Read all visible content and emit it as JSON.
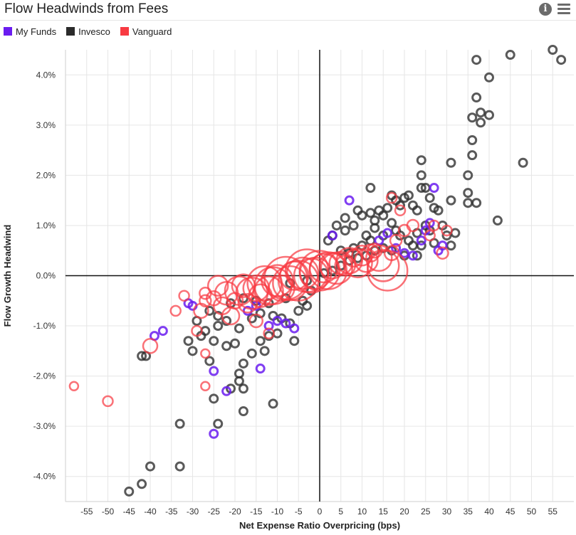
{
  "header": {
    "title": "Flow Headwinds from Fees",
    "info_icon": "info-icon",
    "menu_icon": "hamburger-menu-icon"
  },
  "legend": [
    {
      "label": "My Funds",
      "color": "#6a1cf0"
    },
    {
      "label": "Invesco",
      "color": "#2b2b2b"
    },
    {
      "label": "Vanguard",
      "color": "#f83a42"
    }
  ],
  "chart_data": {
    "type": "scatter",
    "title": "Flow Headwinds from Fees",
    "xlabel": "Net Expense Ratio Overpricing (bps)",
    "ylabel": "Flow Growth Headwind",
    "xlim": [
      -60,
      60
    ],
    "ylim": [
      -4.5,
      4.5
    ],
    "x_ticks": [
      -55,
      -50,
      -45,
      -40,
      -35,
      -30,
      -25,
      -20,
      -15,
      -10,
      -5,
      0,
      5,
      10,
      15,
      20,
      25,
      30,
      35,
      40,
      45,
      50,
      55
    ],
    "x_tick_labels": [
      "-55",
      "-50",
      "-45",
      "-40",
      "-35",
      "-30",
      "-25",
      "-20",
      "-15",
      "-10",
      "-5",
      "0",
      "5",
      "10",
      "15",
      "20",
      "25",
      "30",
      "35",
      "40",
      "45",
      "50",
      "55"
    ],
    "y_ticks": [
      4,
      3,
      2,
      1,
      0,
      -1,
      -2,
      -3,
      -4
    ],
    "y_tick_labels": [
      "4.0%",
      "3.0%",
      "2.0%",
      "1.0%",
      "0.0%",
      "-1.0%",
      "-2.0%",
      "-3.0%",
      "-4.0%"
    ],
    "grid": true,
    "legend_position": "top-left",
    "series": [
      {
        "name": "Invesco",
        "color": "#2b2b2b",
        "points": [
          [
            -45,
            -4.3
          ],
          [
            -42,
            -4.15
          ],
          [
            -40,
            -3.8
          ],
          [
            -33,
            -3.8
          ],
          [
            -33,
            -2.95
          ],
          [
            -24,
            -2.95
          ],
          [
            -18,
            -2.7
          ],
          [
            -11,
            -2.55
          ],
          [
            -21,
            -2.25
          ],
          [
            -18,
            -2.25
          ],
          [
            -19,
            -2.1
          ],
          [
            -25,
            -2.45
          ],
          [
            -19,
            -1.95
          ],
          [
            -18,
            -1.75
          ],
          [
            -26,
            -1.7
          ],
          [
            -42,
            -1.6
          ],
          [
            -41,
            -1.6
          ],
          [
            -30,
            -1.5
          ],
          [
            -25,
            -1.3
          ],
          [
            -22,
            -1.4
          ],
          [
            -20,
            -1.35
          ],
          [
            -16,
            -1.55
          ],
          [
            -13,
            -1.5
          ],
          [
            -14,
            -1.3
          ],
          [
            -12,
            -1.2
          ],
          [
            -10,
            -1.15
          ],
          [
            -6,
            -1.3
          ],
          [
            -31,
            -1.3
          ],
          [
            -28,
            -1.2
          ],
          [
            -29,
            -0.9
          ],
          [
            -27,
            -1.1
          ],
          [
            -24,
            -1.0
          ],
          [
            -22,
            -0.9
          ],
          [
            -19,
            -1.05
          ],
          [
            -16,
            -0.85
          ],
          [
            -14,
            -0.75
          ],
          [
            -11,
            -0.8
          ],
          [
            -9,
            -0.85
          ],
          [
            -7,
            -0.95
          ],
          [
            -5,
            -0.7
          ],
          [
            -3,
            -0.6
          ],
          [
            -26,
            -0.7
          ],
          [
            -24,
            -0.8
          ],
          [
            -21,
            -0.55
          ],
          [
            -18,
            -0.45
          ],
          [
            -15,
            -0.5
          ],
          [
            -12,
            -0.55
          ],
          [
            -8,
            -0.45
          ],
          [
            -4,
            -0.5
          ],
          [
            -2,
            -0.3
          ],
          [
            -7,
            -0.15
          ],
          [
            -3,
            -0.1
          ],
          [
            1,
            0.05
          ],
          [
            3,
            0.1
          ],
          [
            5,
            0.2
          ],
          [
            7,
            0.3
          ],
          [
            9,
            0.35
          ],
          [
            11,
            0.4
          ],
          [
            13,
            0.5
          ],
          [
            15,
            0.55
          ],
          [
            6,
            0.9
          ],
          [
            8,
            1.0
          ],
          [
            9,
            1.3
          ],
          [
            10,
            1.2
          ],
          [
            12,
            1.25
          ],
          [
            13,
            1.1
          ],
          [
            14,
            1.3
          ],
          [
            15,
            1.2
          ],
          [
            16,
            1.35
          ],
          [
            17,
            1.05
          ],
          [
            18,
            1.5
          ],
          [
            19,
            1.4
          ],
          [
            20,
            1.55
          ],
          [
            21,
            1.6
          ],
          [
            22,
            1.4
          ],
          [
            23,
            1.3
          ],
          [
            18,
            0.9
          ],
          [
            19,
            0.8
          ],
          [
            21,
            0.7
          ],
          [
            22,
            0.6
          ],
          [
            23,
            0.85
          ],
          [
            25,
            1.0
          ],
          [
            26,
            0.9
          ],
          [
            27,
            0.65
          ],
          [
            24,
            0.6
          ],
          [
            23,
            0.4
          ],
          [
            20,
            0.4
          ],
          [
            17,
            0.5
          ],
          [
            15,
            0.8
          ],
          [
            11,
            0.8
          ],
          [
            12,
            0.7
          ],
          [
            13,
            0.95
          ],
          [
            10,
            0.6
          ],
          [
            8,
            0.55
          ],
          [
            7,
            0.45
          ],
          [
            5,
            0.5
          ],
          [
            24,
            2.3
          ],
          [
            24,
            2.0
          ],
          [
            24,
            1.75
          ],
          [
            25,
            1.75
          ],
          [
            26,
            1.55
          ],
          [
            27,
            1.35
          ],
          [
            28,
            1.3
          ],
          [
            29,
            1.0
          ],
          [
            30,
            0.8
          ],
          [
            31,
            0.6
          ],
          [
            32,
            0.85
          ],
          [
            31,
            1.5
          ],
          [
            31,
            2.25
          ],
          [
            35,
            1.45
          ],
          [
            35,
            1.65
          ],
          [
            35,
            2.0
          ],
          [
            36,
            2.4
          ],
          [
            36,
            2.7
          ],
          [
            36,
            3.15
          ],
          [
            37,
            3.55
          ],
          [
            38,
            3.25
          ],
          [
            38,
            3.05
          ],
          [
            40,
            3.2
          ],
          [
            40,
            3.95
          ],
          [
            37,
            4.3
          ],
          [
            42,
            1.1
          ],
          [
            37,
            1.45
          ],
          [
            48,
            2.25
          ],
          [
            45,
            4.4
          ],
          [
            55,
            4.5
          ],
          [
            57,
            4.3
          ],
          [
            12,
            1.75
          ],
          [
            17,
            1.6
          ],
          [
            6,
            1.15
          ],
          [
            4,
            1.0
          ],
          [
            3,
            0.8
          ],
          [
            2,
            0.7
          ]
        ]
      },
      {
        "name": "My Funds",
        "color": "#6a1cf0",
        "points": [
          [
            -25,
            -3.15
          ],
          [
            -22,
            -2.3
          ],
          [
            -25,
            -1.9
          ],
          [
            -14,
            -1.85
          ],
          [
            -12,
            -1.0
          ],
          [
            -10,
            -0.9
          ],
          [
            -8,
            -0.95
          ],
          [
            -6,
            -1.05
          ],
          [
            -37,
            -1.1
          ],
          [
            -39,
            -1.2
          ],
          [
            -30,
            -0.6
          ],
          [
            -31,
            -0.55
          ],
          [
            -17,
            -0.7
          ],
          [
            -15,
            -0.6
          ],
          [
            3,
            0.8
          ],
          [
            7,
            1.5
          ],
          [
            14,
            0.7
          ],
          [
            16,
            0.85
          ],
          [
            18,
            0.55
          ],
          [
            20,
            0.45
          ],
          [
            22,
            0.4
          ],
          [
            24,
            0.7
          ],
          [
            25,
            0.9
          ],
          [
            26,
            1.05
          ],
          [
            27,
            1.75
          ],
          [
            29,
            0.6
          ],
          [
            28,
            0.5
          ]
        ]
      },
      {
        "name": "Vanguard",
        "color": "#f83a42",
        "points": [
          [
            -58,
            -2.2,
            6
          ],
          [
            -50,
            -2.5,
            7
          ],
          [
            -40,
            -1.4,
            10
          ],
          [
            -34,
            -0.7,
            7
          ],
          [
            -32,
            -0.4,
            7
          ],
          [
            -29,
            -1.1,
            7
          ],
          [
            -28,
            -0.7,
            10
          ],
          [
            -27,
            -0.5,
            8
          ],
          [
            -27,
            -0.35,
            8
          ],
          [
            -25,
            -0.45,
            10
          ],
          [
            -24,
            -0.2,
            14
          ],
          [
            -23,
            -0.6,
            12
          ],
          [
            -22,
            -0.35,
            16
          ],
          [
            -21,
            -0.8,
            12
          ],
          [
            -20,
            -0.5,
            11
          ],
          [
            -19,
            -0.3,
            20
          ],
          [
            -18,
            -0.2,
            16
          ],
          [
            -17,
            -0.55,
            13
          ],
          [
            -16,
            -0.35,
            22
          ],
          [
            -15,
            -0.25,
            18
          ],
          [
            -14,
            -0.4,
            16
          ],
          [
            -13,
            -0.15,
            24
          ],
          [
            -12,
            -0.3,
            20
          ],
          [
            -11,
            -0.2,
            26
          ],
          [
            -10,
            -0.1,
            22
          ],
          [
            -9,
            -0.25,
            18
          ],
          [
            -8,
            -0.05,
            30
          ],
          [
            -7,
            -0.15,
            24
          ],
          [
            -6,
            0.0,
            20
          ],
          [
            -5,
            -0.1,
            28
          ],
          [
            -4,
            0.05,
            22
          ],
          [
            -3,
            0.1,
            30
          ],
          [
            -2,
            0.0,
            24
          ],
          [
            -1,
            0.05,
            22
          ],
          [
            0,
            0.1,
            28
          ],
          [
            1,
            0.15,
            20
          ],
          [
            2,
            0.1,
            26
          ],
          [
            3,
            0.2,
            18
          ],
          [
            4,
            0.15,
            22
          ],
          [
            5,
            0.25,
            16
          ],
          [
            6,
            0.2,
            14
          ],
          [
            7,
            0.3,
            18
          ],
          [
            8,
            0.35,
            12
          ],
          [
            9,
            0.25,
            20
          ],
          [
            10,
            0.4,
            14
          ],
          [
            11,
            0.3,
            16
          ],
          [
            12,
            0.45,
            12
          ],
          [
            13,
            0.5,
            10
          ],
          [
            14,
            0.35,
            18
          ],
          [
            15,
            0.2,
            22
          ],
          [
            16,
            0.1,
            28
          ],
          [
            17,
            0.45,
            10
          ],
          [
            18,
            0.7,
            8
          ],
          [
            20,
            0.9,
            8
          ],
          [
            22,
            1.0,
            8
          ],
          [
            17,
            1.55,
            7
          ],
          [
            19,
            1.3,
            7
          ],
          [
            26,
            0.8,
            7
          ],
          [
            27,
            1.0,
            7
          ],
          [
            29,
            0.45,
            8
          ],
          [
            30,
            0.9,
            7
          ],
          [
            -27,
            -1.55,
            6
          ],
          [
            -27,
            -2.2,
            6
          ],
          [
            -15,
            -0.9,
            9
          ],
          [
            -12,
            -1.15,
            7
          ]
        ]
      }
    ]
  }
}
